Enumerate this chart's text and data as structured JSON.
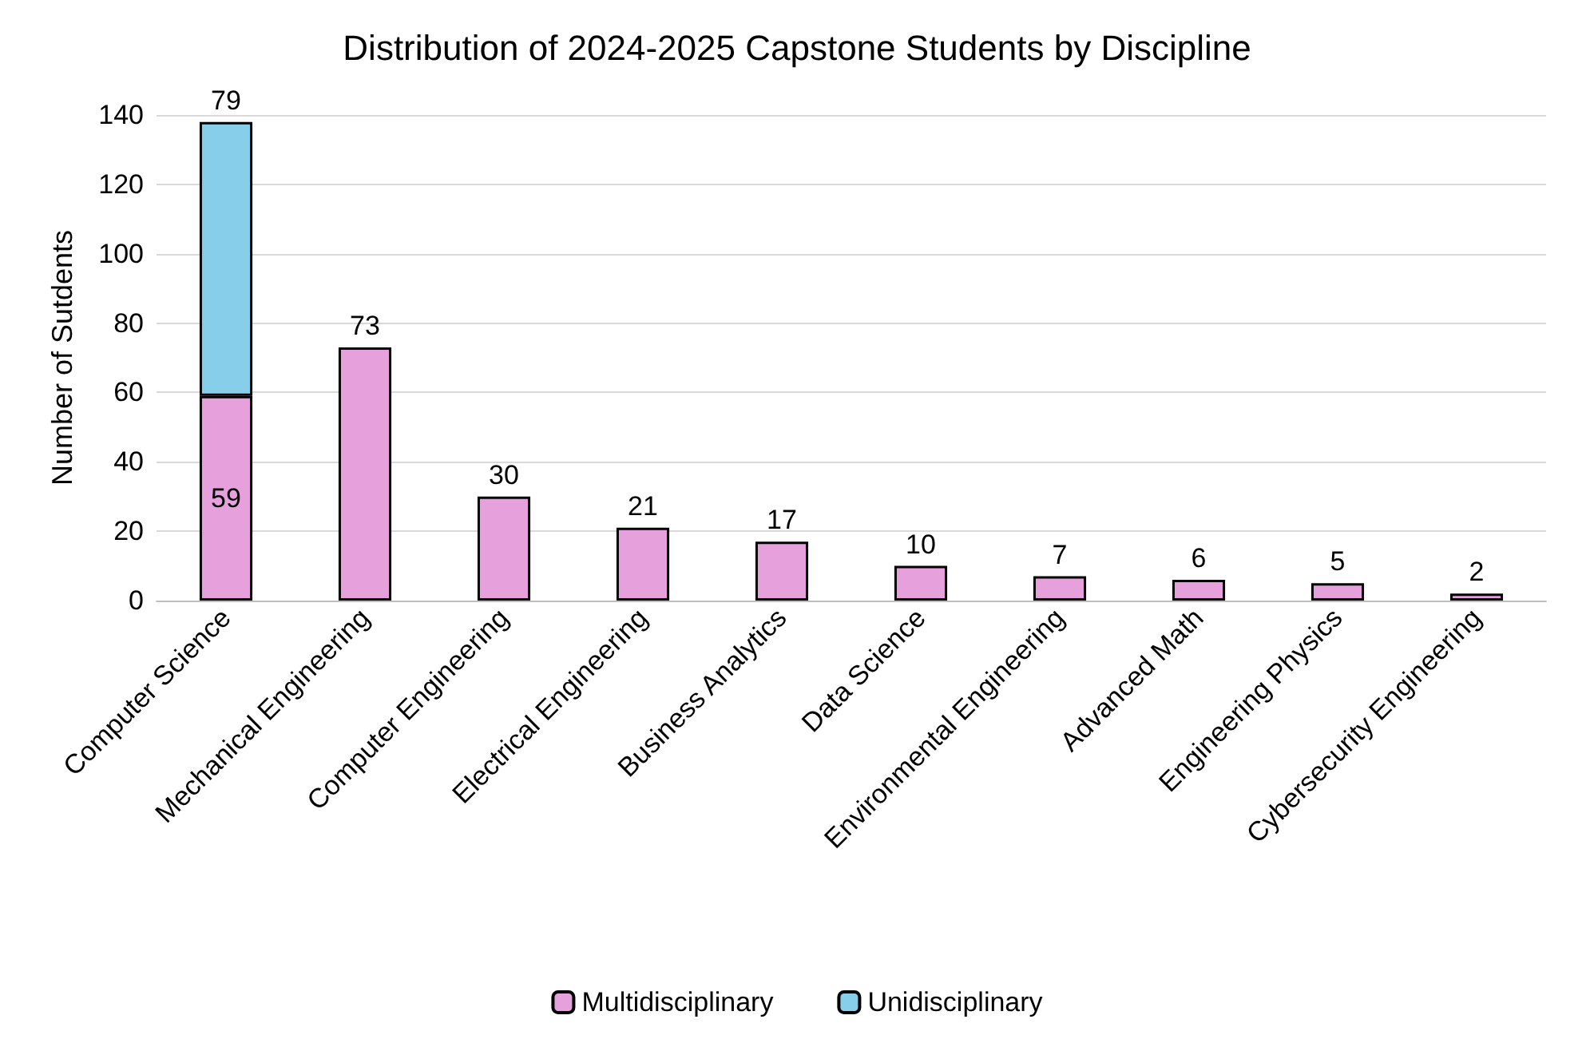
{
  "chart_data": {
    "type": "bar",
    "title": "Distribution of 2024-2025 Capstone Students by Discipline",
    "ylabel": "Number of Sutdents",
    "categories": [
      "Computer Science",
      "Mechanical Engineering",
      "Computer Engineering",
      "Electrical Engineering",
      "Business Analytics",
      "Data Science",
      "Environmental Engineering",
      "Advanced Math",
      "Engineering Physics",
      "Cybersecurity Engineering"
    ],
    "series": [
      {
        "name": "Multidisciplinary",
        "color": "#e6a0dc",
        "values": [
          59,
          73,
          30,
          21,
          17,
          10,
          7,
          6,
          5,
          2
        ]
      },
      {
        "name": "Unidisciplinary",
        "color": "#87ceeb",
        "values": [
          79,
          null,
          null,
          null,
          null,
          null,
          null,
          null,
          null,
          null
        ]
      }
    ],
    "stacked": true,
    "ylim": [
      0,
      140
    ],
    "yticks": [
      0,
      20,
      40,
      60,
      80,
      100,
      120,
      140
    ],
    "grid": "y",
    "legend": "bottom",
    "data_labels": true
  }
}
